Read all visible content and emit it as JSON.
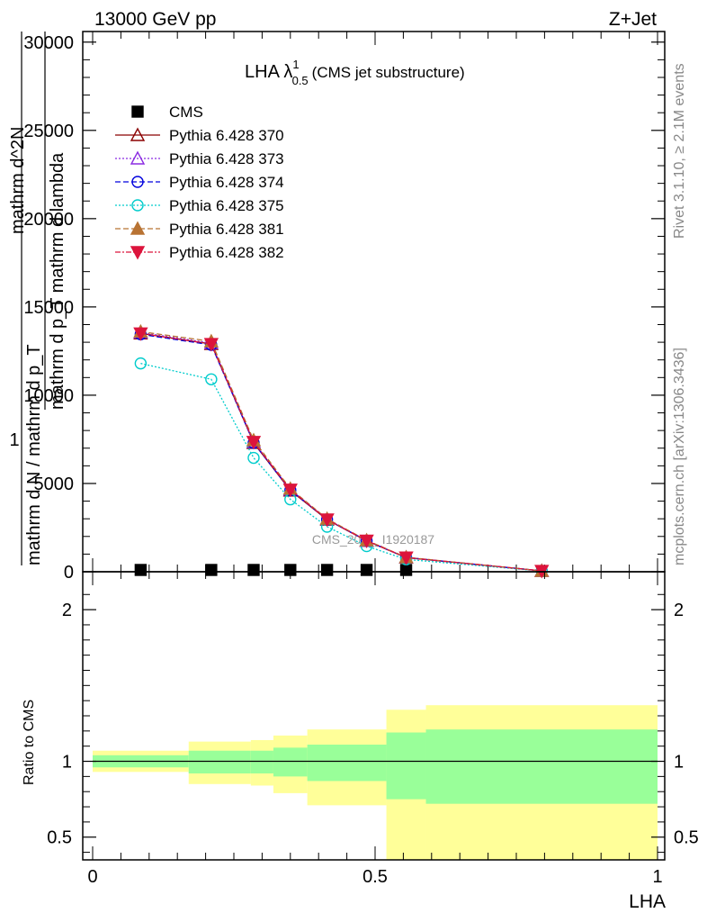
{
  "header": {
    "left": "13000 GeV pp",
    "right": "Z+Jet"
  },
  "plot_title": {
    "main": "LHA λ",
    "superscript": "1",
    "subscript": "0.5",
    "suffix": "(CMS jet substructure)"
  },
  "side_labels": {
    "rivet": "Rivet 3.1.10, ≥ 2.1M events",
    "mcplots": "mcplots.cern.ch [arXiv:1306.3436]"
  },
  "watermark": "CMS_2021_I1920187",
  "colors": {
    "band_inner": "#99ff99",
    "band_outer": "#ffff99",
    "ratio_line": "#000000"
  },
  "chart_data": [
    {
      "type": "line",
      "name": "main",
      "ylabel_parts": [
        "1",
        "mathrm d N / mathrm d p_T",
        "mathrm d^2N",
        "mathrm d p_T mathrm d lambda"
      ],
      "ylim": [
        0,
        30600
      ],
      "xlim": [
        0,
        1
      ],
      "yticks": [
        {
          "v": 0,
          "label": "0"
        },
        {
          "v": 5000,
          "label": "5000"
        },
        {
          "v": 10000,
          "label": "10000"
        },
        {
          "v": 15000,
          "label": "15000"
        },
        {
          "v": 20000,
          "label": "20000"
        },
        {
          "v": 25000,
          "label": "25000"
        },
        {
          "v": 30000,
          "label": "30000"
        }
      ],
      "series": [
        {
          "name": "CMS",
          "color": "#000000",
          "marker": "square-filled",
          "dash": "none",
          "x": [
            0.085,
            0.21,
            0.285,
            0.35,
            0.415,
            0.485,
            0.555
          ],
          "y": [
            0,
            0,
            0,
            0,
            0,
            0,
            0
          ]
        },
        {
          "name": "Pythia 6.428 370",
          "color": "#8b0000",
          "marker": "triangle-open",
          "dash": "none",
          "x": [
            0.085,
            0.21,
            0.285,
            0.35,
            0.415,
            0.485,
            0.555,
            0.795
          ],
          "y": [
            13500,
            12900,
            7300,
            4600,
            2950,
            1750,
            800,
            50
          ]
        },
        {
          "name": "Pythia 6.428 373",
          "color": "#8b2be2",
          "marker": "triangle-open",
          "dash": "2,2",
          "x": [
            0.085,
            0.21,
            0.285,
            0.35,
            0.415,
            0.485,
            0.555,
            0.795
          ],
          "y": [
            13550,
            12950,
            7350,
            4650,
            2980,
            1760,
            810,
            50
          ]
        },
        {
          "name": "Pythia 6.428 374",
          "color": "#0000dd",
          "marker": "circle-open",
          "dash": "6,3",
          "x": [
            0.085,
            0.21,
            0.285,
            0.35,
            0.415,
            0.485,
            0.555,
            0.795
          ],
          "y": [
            13450,
            12850,
            7300,
            4620,
            2960,
            1750,
            805,
            50
          ]
        },
        {
          "name": "Pythia 6.428 375",
          "color": "#00cccc",
          "marker": "circle-open",
          "dash": "2,2",
          "x": [
            0.085,
            0.21,
            0.285,
            0.35,
            0.415,
            0.485,
            0.555,
            0.795
          ],
          "y": [
            11800,
            10900,
            6450,
            4100,
            2550,
            1450,
            700,
            40
          ]
        },
        {
          "name": "Pythia 6.428 381",
          "color": "#b87333",
          "marker": "triangle-filled",
          "dash": "6,3",
          "x": [
            0.085,
            0.21,
            0.285,
            0.35,
            0.415,
            0.485,
            0.555,
            0.795
          ],
          "y": [
            13600,
            13050,
            7450,
            4700,
            3000,
            1780,
            820,
            50
          ]
        },
        {
          "name": "Pythia 6.428 382",
          "color": "#dc143c",
          "marker": "triangle-down-filled",
          "dash": "6,2,2,2",
          "x": [
            0.085,
            0.21,
            0.285,
            0.35,
            0.415,
            0.485,
            0.555,
            0.795
          ],
          "y": [
            13500,
            12900,
            7350,
            4650,
            2960,
            1760,
            805,
            50
          ]
        }
      ]
    },
    {
      "type": "area",
      "name": "ratio",
      "ylabel": "Ratio to CMS",
      "xlabel": "LHA",
      "xlim": [
        0,
        1
      ],
      "ylim": [
        0.35,
        2.25
      ],
      "xticks": [
        {
          "v": 0,
          "label": "0"
        },
        {
          "v": 0.5,
          "label": "0.5"
        },
        {
          "v": 1,
          "label": "1"
        }
      ],
      "yticks": [
        {
          "v": 0.5,
          "label": "0.5"
        },
        {
          "v": 1,
          "label": "1"
        },
        {
          "v": 2,
          "label": "2"
        }
      ],
      "bins": [
        {
          "lo": 0.0,
          "hi": 0.17,
          "inner": [
            0.96,
            1.04
          ],
          "outer": [
            0.93,
            1.07
          ]
        },
        {
          "lo": 0.17,
          "hi": 0.28,
          "inner": [
            0.92,
            1.07
          ],
          "outer": [
            0.85,
            1.13
          ]
        },
        {
          "lo": 0.28,
          "hi": 0.32,
          "inner": [
            0.92,
            1.07
          ],
          "outer": [
            0.84,
            1.14
          ]
        },
        {
          "lo": 0.32,
          "hi": 0.38,
          "inner": [
            0.9,
            1.09
          ],
          "outer": [
            0.79,
            1.17
          ]
        },
        {
          "lo": 0.38,
          "hi": 0.52,
          "inner": [
            0.87,
            1.11
          ],
          "outer": [
            0.71,
            1.21
          ]
        },
        {
          "lo": 0.52,
          "hi": 0.59,
          "inner": [
            0.75,
            1.19
          ],
          "outer": [
            0.0,
            1.34
          ]
        },
        {
          "lo": 0.59,
          "hi": 1.0,
          "inner": [
            0.72,
            1.21
          ],
          "outer": [
            0.0,
            1.37
          ]
        }
      ],
      "reference_line": 1
    }
  ]
}
